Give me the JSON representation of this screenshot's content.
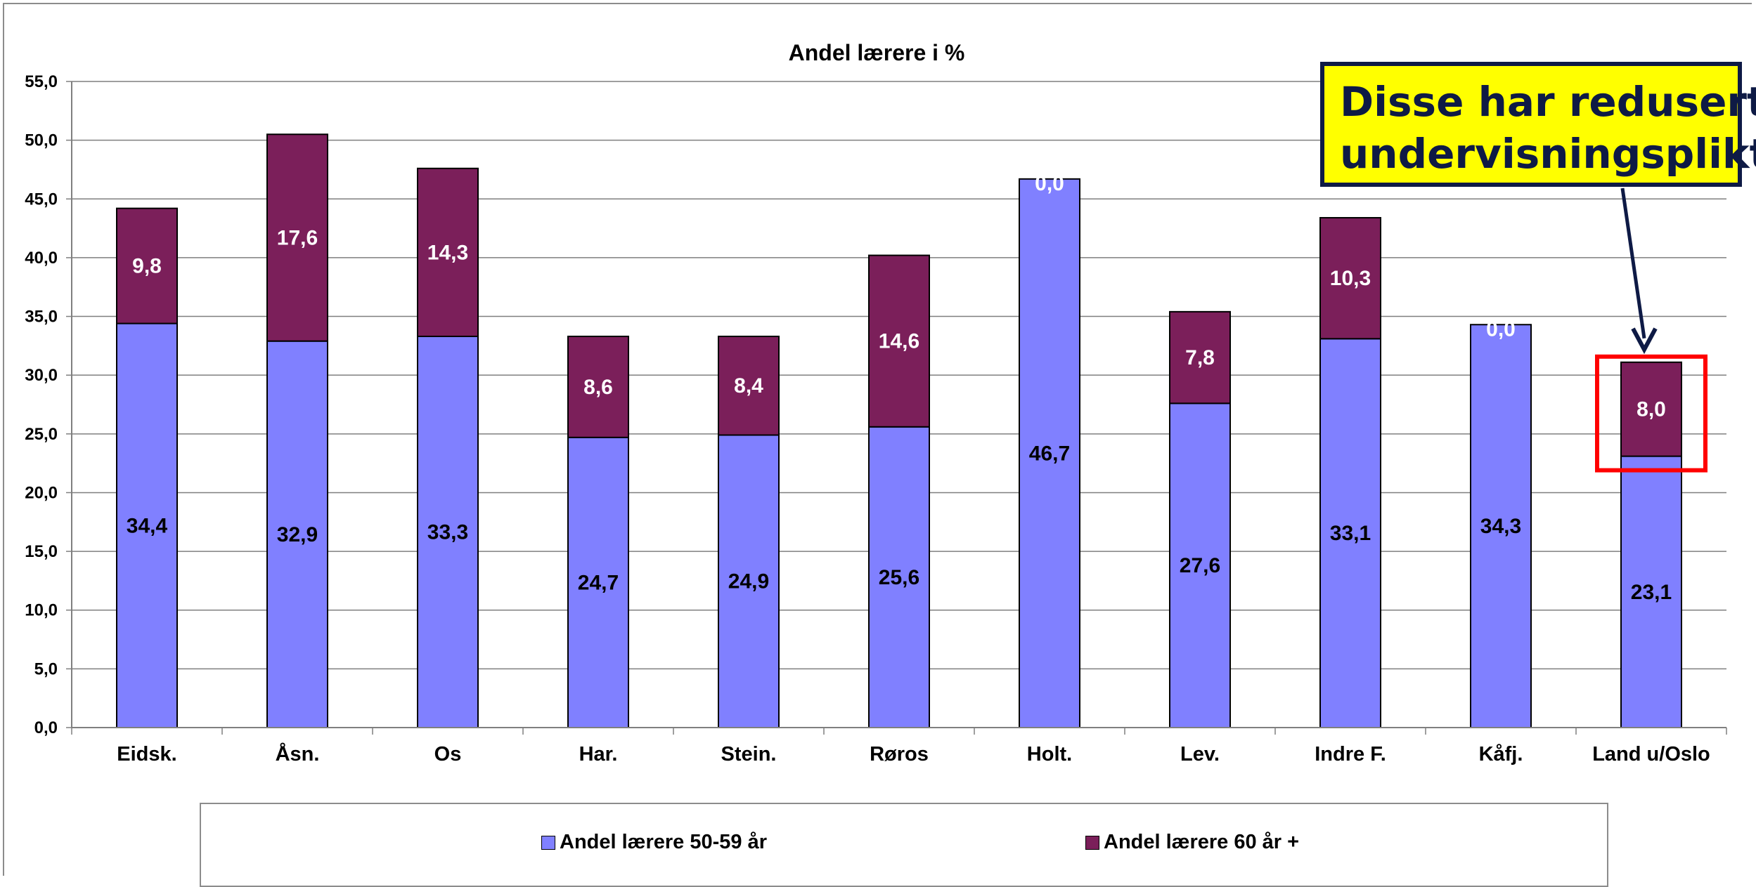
{
  "chart_data": {
    "type": "bar",
    "stacked": true,
    "title": "Andel lærere i  %",
    "categories": [
      "Eidsk.",
      "Åsn.",
      "Os",
      "Har.",
      "Stein.",
      "Røros",
      "Holt.",
      "Lev.",
      "Indre F.",
      "Kåfj.",
      "Land u/Oslo"
    ],
    "series": [
      {
        "name": "Andel lærere 50-59 år",
        "color": "#8080ff",
        "values": [
          34.4,
          32.9,
          33.3,
          24.7,
          24.9,
          25.6,
          46.7,
          27.6,
          33.1,
          34.3,
          23.1
        ],
        "labels": [
          "34,4",
          "32,9",
          "33,3",
          "24,7",
          "24,9",
          "25,6",
          "46,7",
          "27,6",
          "33,1",
          "34,3",
          "23,1"
        ]
      },
      {
        "name": "Andel lærere 60 år +",
        "color": "#7b1f5a",
        "values": [
          9.8,
          17.6,
          14.3,
          8.6,
          8.4,
          14.6,
          0.0,
          7.8,
          10.3,
          0.0,
          8.0
        ],
        "labels": [
          "9,8",
          "17,6",
          "14,3",
          "8,6",
          "8,4",
          "14,6",
          "0,0",
          "7,8",
          "10,3",
          "0,0",
          "8,0"
        ]
      }
    ],
    "ylim": [
      0,
      55
    ],
    "yticks": [
      "0,0",
      "5,0",
      "10,0",
      "15,0",
      "20,0",
      "25,0",
      "30,0",
      "35,0",
      "40,0",
      "45,0",
      "50,0",
      "55,0"
    ],
    "grid": true,
    "legend": "bottom",
    "highlight": {
      "category": "Land u/Oslo",
      "color": "#ff0000"
    }
  },
  "callout": {
    "line1": "Disse har redusert",
    "line2": "undervisningsplikt",
    "background": "#ffff00",
    "color": "#0e1a45"
  }
}
